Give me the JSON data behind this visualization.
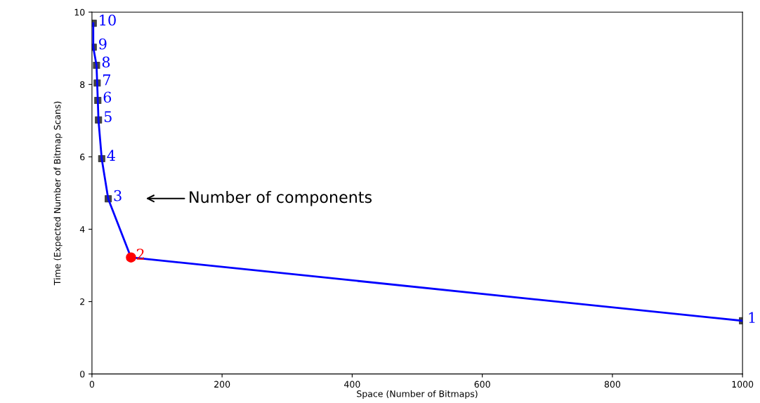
{
  "chart_data": {
    "type": "line",
    "xlabel": "Space (Number of Bitmaps)",
    "ylabel": "Time (Expected Number of Bitmap Scans)",
    "xlim": [
      0,
      1000
    ],
    "ylim": [
      0,
      10
    ],
    "xticks": [
      0,
      200,
      400,
      600,
      800,
      1000
    ],
    "yticks": [
      0,
      2,
      4,
      6,
      8,
      10
    ],
    "grid": false,
    "marker": "square",
    "line_style": "solid",
    "series": [
      {
        "color": "#0000ff",
        "x": [
          2,
          2,
          7,
          8,
          9,
          10,
          15,
          25,
          60,
          1000
        ],
        "values": [
          9.69,
          9.03,
          8.53,
          8.04,
          7.56,
          7.02,
          5.95,
          4.84,
          3.22,
          1.47
        ],
        "colors": [
          "#444444",
          "#444444",
          "#444444",
          "#444444",
          "#444444",
          "#444444",
          "#444444",
          "#444444",
          null,
          "#444444"
        ]
      },
      {
        "type": "scatter",
        "marker": "circle",
        "color": "#ff0000",
        "x": [
          60
        ],
        "values": [
          3.22
        ]
      }
    ],
    "annotations": [
      "Number of components",
      {
        "text": "10",
        "x": 2,
        "y": 9.69
      },
      {
        "text": "9",
        "x": 2,
        "y": 9.03
      },
      {
        "text": "8",
        "x": 7,
        "y": 8.53
      },
      {
        "text": "7",
        "x": 8,
        "y": 8.04
      },
      {
        "text": "6",
        "x": 9,
        "y": 7.56
      },
      {
        "text": "5",
        "x": 10,
        "y": 7.02
      },
      {
        "text": "4",
        "x": 15,
        "y": 5.95
      },
      {
        "text": "3",
        "x": 25,
        "y": 4.84
      },
      {
        "text": "2",
        "x": 60,
        "y": 3.22
      },
      {
        "text": "1",
        "x": 1000,
        "y": 1.47
      }
    ]
  }
}
